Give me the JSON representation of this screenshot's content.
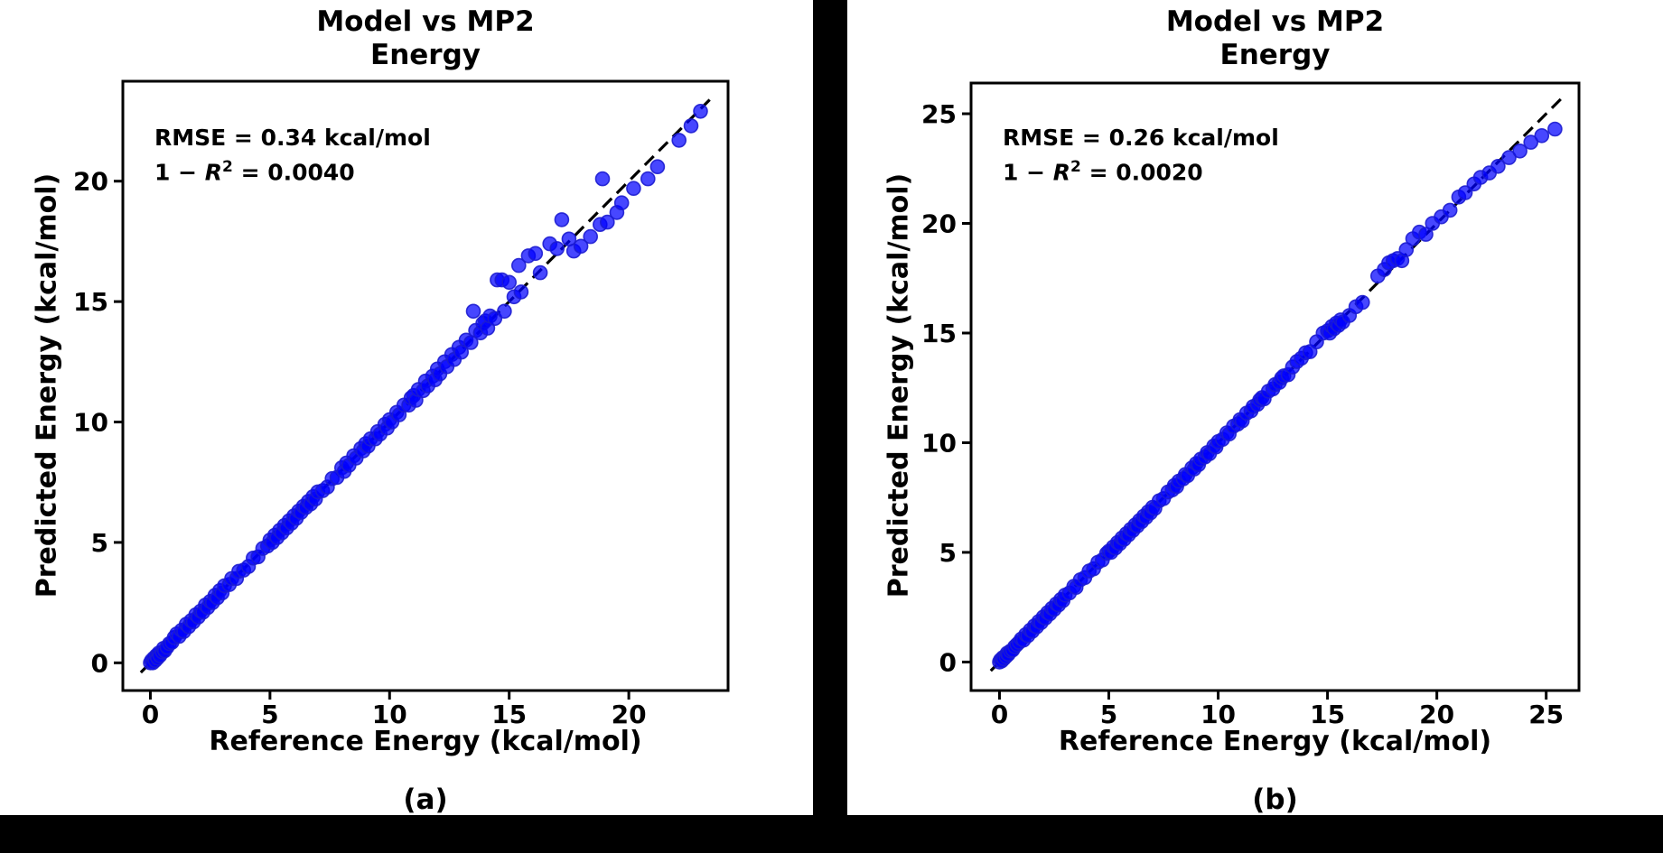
{
  "colors": {
    "figure_background": "#000000",
    "panel_background": "#ffffff",
    "axis_color": "#000000",
    "identity_line_color": "#000000",
    "marker_fill": "#0000ff",
    "marker_edge": "#1c1cd0"
  },
  "chart_data": [
    {
      "type": "scatter",
      "panel": "a",
      "title": [
        "Model vs MP2",
        "Energy"
      ],
      "xlabel": "Reference Energy (kcal/mol)",
      "ylabel": "Predicted Energy (kcal/mol)",
      "caption": "(a)",
      "annotation": {
        "rmse": "RMSE = 0.34 kcal/mol",
        "r2_pre": "1 − ",
        "r2_var": "R",
        "r2_sup": "2",
        "r2_post": " = 0.0040"
      },
      "x_ticks": [
        0,
        5,
        10,
        15,
        20
      ],
      "y_ticks": [
        0,
        5,
        10,
        15,
        20
      ],
      "xlim": [
        -1.15,
        24.15
      ],
      "ylim": [
        -1.15,
        24.15
      ],
      "grid": false,
      "legend": null,
      "identity_line": [
        [
          -0.4,
          -0.4
        ],
        [
          23.5,
          23.5
        ]
      ],
      "marker": {
        "radius": 7.5,
        "opacity": 0.72
      },
      "points": [
        [
          0,
          0
        ],
        [
          0.05,
          0.1
        ],
        [
          0.1,
          0
        ],
        [
          0.15,
          0.2
        ],
        [
          0.2,
          0.1
        ],
        [
          0.25,
          0.3
        ],
        [
          0.3,
          0.2
        ],
        [
          0.35,
          0.4
        ],
        [
          0.4,
          0.3
        ],
        [
          0.5,
          0.45
        ],
        [
          0.55,
          0.6
        ],
        [
          0.6,
          0.5
        ],
        [
          0.7,
          0.65
        ],
        [
          0.8,
          0.8
        ],
        [
          0.9,
          0.85
        ],
        [
          1,
          1.05
        ],
        [
          1.1,
          1.2
        ],
        [
          1.2,
          1.1
        ],
        [
          1.3,
          1.35
        ],
        [
          1.4,
          1.3
        ],
        [
          1.5,
          1.6
        ],
        [
          1.6,
          1.5
        ],
        [
          1.7,
          1.75
        ],
        [
          1.8,
          1.7
        ],
        [
          1.9,
          2
        ],
        [
          2,
          1.9
        ],
        [
          2.1,
          2.15
        ],
        [
          2.2,
          2.1
        ],
        [
          2.3,
          2.4
        ],
        [
          2.4,
          2.3
        ],
        [
          2.5,
          2.55
        ],
        [
          2.6,
          2.5
        ],
        [
          2.7,
          2.8
        ],
        [
          2.8,
          2.7
        ],
        [
          2.9,
          3
        ],
        [
          3,
          2.9
        ],
        [
          3.1,
          3.2
        ],
        [
          3.3,
          3.25
        ],
        [
          3.4,
          3.5
        ],
        [
          3.6,
          3.5
        ],
        [
          3.7,
          3.8
        ],
        [
          3.9,
          3.85
        ],
        [
          4.1,
          4
        ],
        [
          4.3,
          4.35
        ],
        [
          4.5,
          4.4
        ],
        [
          4.7,
          4.75
        ],
        [
          4.9,
          4.85
        ],
        [
          5,
          5.1
        ],
        [
          5.1,
          5
        ],
        [
          5.2,
          5.3
        ],
        [
          5.3,
          5.2
        ],
        [
          5.4,
          5.5
        ],
        [
          5.5,
          5.4
        ],
        [
          5.6,
          5.7
        ],
        [
          5.7,
          5.6
        ],
        [
          5.8,
          5.9
        ],
        [
          5.9,
          5.8
        ],
        [
          6,
          6.1
        ],
        [
          6.1,
          6
        ],
        [
          6.2,
          6.3
        ],
        [
          6.3,
          6.25
        ],
        [
          6.4,
          6.5
        ],
        [
          6.5,
          6.45
        ],
        [
          6.6,
          6.7
        ],
        [
          6.7,
          6.6
        ],
        [
          6.8,
          6.9
        ],
        [
          6.9,
          6.8
        ],
        [
          7,
          7.1
        ],
        [
          7.2,
          7.15
        ],
        [
          7.4,
          7.3
        ],
        [
          7.6,
          7.65
        ],
        [
          7.8,
          7.7
        ],
        [
          8,
          8.1
        ],
        [
          8.1,
          7.95
        ],
        [
          8.2,
          8.3
        ],
        [
          8.3,
          8.2
        ],
        [
          8.5,
          8.6
        ],
        [
          8.6,
          8.5
        ],
        [
          8.8,
          8.9
        ],
        [
          8.9,
          8.8
        ],
        [
          9,
          9.1
        ],
        [
          9.1,
          9
        ],
        [
          9.2,
          9.3
        ],
        [
          9.4,
          9.3
        ],
        [
          9.5,
          9.6
        ],
        [
          9.6,
          9.5
        ],
        [
          9.8,
          9.9
        ],
        [
          9.9,
          9.75
        ],
        [
          10,
          10.1
        ],
        [
          10.1,
          10
        ],
        [
          10.3,
          10.4
        ],
        [
          10.4,
          10.3
        ],
        [
          10.6,
          10.7
        ],
        [
          10.8,
          10.7
        ],
        [
          10.9,
          11
        ],
        [
          11,
          11.1
        ],
        [
          11.1,
          10.9
        ],
        [
          11.2,
          11.35
        ],
        [
          11.4,
          11.3
        ],
        [
          11.5,
          11.7
        ],
        [
          11.6,
          11.5
        ],
        [
          11.8,
          11.9
        ],
        [
          11.9,
          11.75
        ],
        [
          12,
          12.2
        ],
        [
          12.1,
          12
        ],
        [
          12.3,
          12.5
        ],
        [
          12.4,
          12.3
        ],
        [
          12.6,
          12.8
        ],
        [
          12.7,
          12.6
        ],
        [
          12.9,
          13.1
        ],
        [
          13,
          12.9
        ],
        [
          13.2,
          13.4
        ],
        [
          13.4,
          13.3
        ],
        [
          13.5,
          14.6
        ],
        [
          13.6,
          13.8
        ],
        [
          13.8,
          13.7
        ],
        [
          13.9,
          14.1
        ],
        [
          14,
          14.2
        ],
        [
          14.1,
          13.9
        ],
        [
          14.2,
          14.4
        ],
        [
          14.4,
          14.3
        ],
        [
          14.5,
          15.9
        ],
        [
          14.7,
          15.9
        ],
        [
          14.8,
          14.6
        ],
        [
          15,
          15.8
        ],
        [
          15.2,
          15.2
        ],
        [
          15.4,
          16.5
        ],
        [
          15.5,
          15.4
        ],
        [
          15.8,
          16.9
        ],
        [
          16.1,
          17
        ],
        [
          16.3,
          16.2
        ],
        [
          16.7,
          17.4
        ],
        [
          17,
          17.2
        ],
        [
          17.2,
          18.4
        ],
        [
          17.5,
          17.6
        ],
        [
          17.7,
          17.1
        ],
        [
          18,
          17.3
        ],
        [
          18.4,
          17.7
        ],
        [
          18.8,
          18.2
        ],
        [
          18.9,
          20.1
        ],
        [
          19.1,
          18.3
        ],
        [
          19.5,
          18.7
        ],
        [
          19.7,
          19.1
        ],
        [
          20.2,
          19.7
        ],
        [
          20.8,
          20.1
        ],
        [
          21.2,
          20.6
        ],
        [
          22.1,
          21.7
        ],
        [
          22.6,
          22.3
        ],
        [
          23,
          22.9
        ]
      ]
    },
    {
      "type": "scatter",
      "panel": "b",
      "title": [
        "Model vs MP2",
        "Energy"
      ],
      "xlabel": "Reference Energy (kcal/mol)",
      "ylabel": "Predicted Energy (kcal/mol)",
      "caption": "(b)",
      "annotation": {
        "rmse": "RMSE = 0.26 kcal/mol",
        "r2_pre": "1 − ",
        "r2_var": "R",
        "r2_sup": "2",
        "r2_post": " = 0.0020"
      },
      "x_ticks": [
        0,
        5,
        10,
        15,
        20,
        25
      ],
      "y_ticks": [
        0,
        5,
        10,
        15,
        20,
        25
      ],
      "xlim": [
        -1.3,
        26.5
      ],
      "ylim": [
        -1.3,
        26.4
      ],
      "grid": false,
      "legend": null,
      "identity_line": [
        [
          -0.4,
          -0.4
        ],
        [
          25.7,
          25.7
        ]
      ],
      "marker": {
        "radius": 7.5,
        "opacity": 0.72
      },
      "points": [
        [
          0,
          0
        ],
        [
          0.05,
          0.1
        ],
        [
          0.1,
          0.05
        ],
        [
          0.15,
          0.2
        ],
        [
          0.2,
          0.15
        ],
        [
          0.3,
          0.25
        ],
        [
          0.35,
          0.4
        ],
        [
          0.4,
          0.35
        ],
        [
          0.5,
          0.5
        ],
        [
          0.6,
          0.55
        ],
        [
          0.7,
          0.7
        ],
        [
          0.8,
          0.8
        ],
        [
          0.9,
          0.9
        ],
        [
          1,
          1.05
        ],
        [
          1.1,
          1
        ],
        [
          1.2,
          1.25
        ],
        [
          1.3,
          1.2
        ],
        [
          1.4,
          1.45
        ],
        [
          1.5,
          1.4
        ],
        [
          1.6,
          1.65
        ],
        [
          1.7,
          1.6
        ],
        [
          1.8,
          1.85
        ],
        [
          1.9,
          1.8
        ],
        [
          2,
          2.05
        ],
        [
          2.1,
          2
        ],
        [
          2.2,
          2.25
        ],
        [
          2.3,
          2.2
        ],
        [
          2.4,
          2.45
        ],
        [
          2.5,
          2.4
        ],
        [
          2.6,
          2.65
        ],
        [
          2.7,
          2.6
        ],
        [
          2.8,
          2.85
        ],
        [
          2.9,
          2.8
        ],
        [
          3,
          3.05
        ],
        [
          3.2,
          3.15
        ],
        [
          3.4,
          3.45
        ],
        [
          3.5,
          3.4
        ],
        [
          3.7,
          3.75
        ],
        [
          3.9,
          3.85
        ],
        [
          4.1,
          4.15
        ],
        [
          4.3,
          4.25
        ],
        [
          4.5,
          4.55
        ],
        [
          4.7,
          4.65
        ],
        [
          4.9,
          4.95
        ],
        [
          5,
          5.05
        ],
        [
          5.1,
          5
        ],
        [
          5.2,
          5.25
        ],
        [
          5.3,
          5.2
        ],
        [
          5.4,
          5.45
        ],
        [
          5.5,
          5.4
        ],
        [
          5.6,
          5.65
        ],
        [
          5.7,
          5.6
        ],
        [
          5.8,
          5.85
        ],
        [
          5.9,
          5.8
        ],
        [
          6,
          6.05
        ],
        [
          6.1,
          6
        ],
        [
          6.2,
          6.25
        ],
        [
          6.3,
          6.2
        ],
        [
          6.4,
          6.45
        ],
        [
          6.5,
          6.4
        ],
        [
          6.6,
          6.65
        ],
        [
          6.7,
          6.6
        ],
        [
          6.8,
          6.85
        ],
        [
          6.9,
          6.8
        ],
        [
          7,
          7.05
        ],
        [
          7.1,
          7
        ],
        [
          7.3,
          7.35
        ],
        [
          7.5,
          7.45
        ],
        [
          7.7,
          7.75
        ],
        [
          7.9,
          7.85
        ],
        [
          8,
          8.05
        ],
        [
          8.1,
          8
        ],
        [
          8.2,
          8.25
        ],
        [
          8.4,
          8.35
        ],
        [
          8.5,
          8.55
        ],
        [
          8.6,
          8.5
        ],
        [
          8.8,
          8.85
        ],
        [
          8.9,
          8.8
        ],
        [
          9,
          9.05
        ],
        [
          9.1,
          9
        ],
        [
          9.2,
          9.25
        ],
        [
          9.4,
          9.35
        ],
        [
          9.5,
          9.55
        ],
        [
          9.6,
          9.5
        ],
        [
          9.8,
          9.85
        ],
        [
          9.9,
          9.8
        ],
        [
          10,
          10.05
        ],
        [
          10.2,
          10.15
        ],
        [
          10.4,
          10.45
        ],
        [
          10.5,
          10.4
        ],
        [
          10.7,
          10.75
        ],
        [
          10.9,
          10.85
        ],
        [
          11,
          11.05
        ],
        [
          11.1,
          11
        ],
        [
          11.3,
          11.35
        ],
        [
          11.5,
          11.45
        ],
        [
          11.6,
          11.65
        ],
        [
          11.8,
          11.75
        ],
        [
          11.9,
          11.95
        ],
        [
          12,
          12.05
        ],
        [
          12.1,
          12
        ],
        [
          12.3,
          12.35
        ],
        [
          12.5,
          12.45
        ],
        [
          12.6,
          12.65
        ],
        [
          12.8,
          12.75
        ],
        [
          12.9,
          12.95
        ],
        [
          13,
          13.05
        ],
        [
          13.2,
          13.1
        ],
        [
          13.4,
          13.45
        ],
        [
          13.6,
          13.7
        ],
        [
          13.8,
          13.85
        ],
        [
          14,
          14.1
        ],
        [
          14.2,
          14.15
        ],
        [
          14.5,
          14.6
        ],
        [
          14.8,
          15
        ],
        [
          15,
          15.1
        ],
        [
          15.1,
          15
        ],
        [
          15.2,
          15.3
        ],
        [
          15.3,
          15.2
        ],
        [
          15.4,
          15.45
        ],
        [
          15.5,
          15.35
        ],
        [
          15.6,
          15.6
        ],
        [
          15.7,
          15.5
        ],
        [
          16,
          15.8
        ],
        [
          16.3,
          16.2
        ],
        [
          16.6,
          16.4
        ],
        [
          17.3,
          17.6
        ],
        [
          17.6,
          17.9
        ],
        [
          17.8,
          18.2
        ],
        [
          18,
          18.3
        ],
        [
          18.2,
          18.4
        ],
        [
          18.4,
          18.3
        ],
        [
          18.6,
          18.8
        ],
        [
          18.9,
          19.3
        ],
        [
          19.2,
          19.6
        ],
        [
          19.5,
          19.5
        ],
        [
          19.8,
          20
        ],
        [
          20.2,
          20.3
        ],
        [
          20.6,
          20.6
        ],
        [
          21,
          21.2
        ],
        [
          21.3,
          21.4
        ],
        [
          21.7,
          21.8
        ],
        [
          22,
          22.1
        ],
        [
          22.4,
          22.3
        ],
        [
          22.8,
          22.6
        ],
        [
          23.3,
          23
        ],
        [
          23.8,
          23.3
        ],
        [
          24.3,
          23.7
        ],
        [
          24.8,
          24
        ],
        [
          25.4,
          24.3
        ]
      ]
    }
  ]
}
